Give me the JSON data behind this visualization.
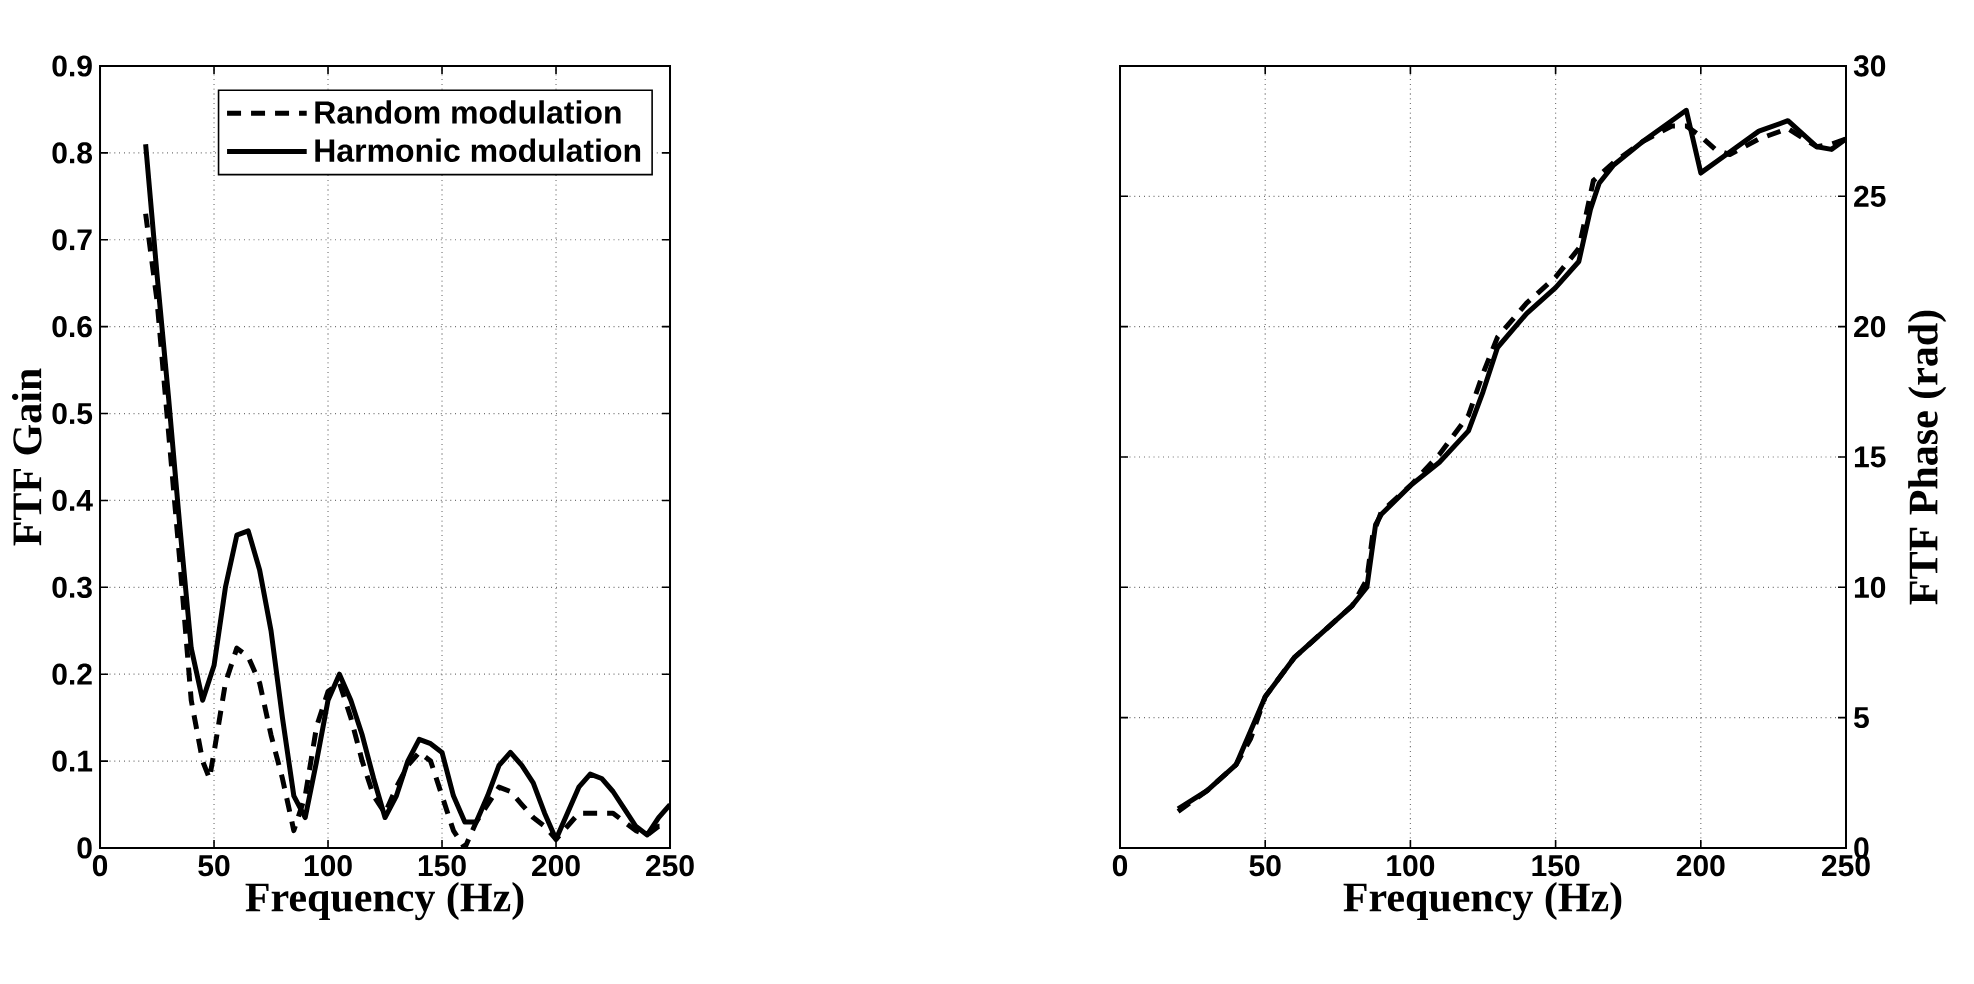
{
  "chart_data": [
    {
      "type": "line",
      "xlabel": "Frequency (Hz)",
      "ylabel": "FTF Gain",
      "xlim": [
        0,
        250
      ],
      "ylim": [
        0,
        0.9
      ],
      "xticks": [
        0,
        50,
        100,
        150,
        200,
        250
      ],
      "yticks": [
        0,
        0.1,
        0.2,
        0.3,
        0.4,
        0.5,
        0.6,
        0.7,
        0.8,
        0.9
      ],
      "grid": true,
      "legend": "top right",
      "marker": "none",
      "series": [
        {
          "name": "Random modulation",
          "color": "#000000",
          "line_style": "dashed",
          "x": [
            20,
            25,
            30,
            35,
            40,
            45,
            48,
            50,
            55,
            60,
            65,
            70,
            75,
            80,
            85,
            90,
            95,
            100,
            105,
            110,
            115,
            120,
            125,
            130,
            135,
            140,
            145,
            150,
            155,
            160,
            165,
            170,
            175,
            180,
            185,
            190,
            195,
            200,
            205,
            210,
            215,
            220,
            225,
            230,
            235,
            240,
            245,
            250
          ],
          "values": [
            0.73,
            0.63,
            0.48,
            0.33,
            0.17,
            0.1,
            0.08,
            0.11,
            0.19,
            0.23,
            0.22,
            0.19,
            0.13,
            0.08,
            0.02,
            0.06,
            0.14,
            0.18,
            0.19,
            0.15,
            0.1,
            0.06,
            0.04,
            0.07,
            0.095,
            0.11,
            0.1,
            0.06,
            0.02,
            0.0,
            0.03,
            0.05,
            0.07,
            0.065,
            0.05,
            0.035,
            0.025,
            0.01,
            0.025,
            0.04,
            0.04,
            0.04,
            0.04,
            0.03,
            0.02,
            0.015,
            0.025,
            0.025
          ]
        },
        {
          "name": "Harmonic modulation",
          "color": "#000000",
          "line_style": "solid",
          "x": [
            20,
            25,
            30,
            35,
            40,
            45,
            50,
            55,
            60,
            65,
            70,
            75,
            80,
            85,
            90,
            95,
            100,
            105,
            110,
            115,
            120,
            125,
            130,
            135,
            140,
            145,
            150,
            155,
            160,
            165,
            170,
            175,
            180,
            185,
            190,
            195,
            200,
            205,
            210,
            215,
            220,
            225,
            230,
            235,
            240,
            245,
            250
          ],
          "values": [
            0.81,
            0.66,
            0.52,
            0.37,
            0.23,
            0.17,
            0.21,
            0.3,
            0.36,
            0.365,
            0.32,
            0.25,
            0.15,
            0.06,
            0.035,
            0.1,
            0.17,
            0.2,
            0.17,
            0.13,
            0.08,
            0.035,
            0.06,
            0.1,
            0.125,
            0.12,
            0.11,
            0.06,
            0.03,
            0.03,
            0.06,
            0.095,
            0.11,
            0.095,
            0.075,
            0.04,
            0.01,
            0.04,
            0.07,
            0.085,
            0.08,
            0.065,
            0.045,
            0.025,
            0.015,
            0.035,
            0.05
          ]
        }
      ]
    },
    {
      "type": "line",
      "xlabel": "Frequency (Hz)",
      "ylabel": "FTF Phase (rad)",
      "xlim": [
        0,
        250
      ],
      "ylim": [
        0,
        30
      ],
      "xticks": [
        0,
        50,
        100,
        150,
        200,
        250
      ],
      "yticks": [
        0,
        5,
        10,
        15,
        20,
        25,
        30
      ],
      "grid": true,
      "marker": "none",
      "series": [
        {
          "color": "#000000",
          "line_style": "dashed",
          "x": [
            20,
            30,
            40,
            45,
            50,
            60,
            70,
            80,
            85,
            87,
            90,
            100,
            110,
            120,
            125,
            130,
            140,
            150,
            158,
            163,
            170,
            180,
            190,
            195,
            200,
            205,
            210,
            220,
            230,
            240,
            245,
            250
          ],
          "values": [
            1.4,
            2.2,
            3.2,
            4.2,
            5.8,
            7.3,
            8.3,
            9.3,
            10.3,
            12.0,
            12.9,
            13.9,
            15.1,
            16.6,
            18.2,
            19.6,
            20.9,
            21.9,
            23.0,
            25.6,
            26.3,
            27.1,
            27.7,
            27.7,
            27.3,
            26.8,
            26.6,
            27.2,
            27.6,
            26.9,
            27.0,
            27.2
          ]
        },
        {
          "color": "#000000",
          "line_style": "solid",
          "x": [
            20,
            30,
            40,
            45,
            50,
            60,
            70,
            80,
            85,
            88,
            90,
            100,
            110,
            120,
            125,
            130,
            140,
            150,
            158,
            162,
            165,
            170,
            180,
            190,
            195,
            200,
            210,
            220,
            230,
            240,
            245,
            250
          ],
          "values": [
            1.5,
            2.2,
            3.2,
            4.5,
            5.8,
            7.3,
            8.3,
            9.3,
            10.0,
            12.4,
            12.8,
            13.9,
            14.8,
            16.0,
            17.5,
            19.2,
            20.5,
            21.5,
            22.5,
            24.5,
            25.5,
            26.2,
            27.1,
            27.9,
            28.3,
            25.9,
            26.7,
            27.5,
            27.9,
            26.9,
            26.8,
            27.2
          ]
        }
      ]
    }
  ]
}
